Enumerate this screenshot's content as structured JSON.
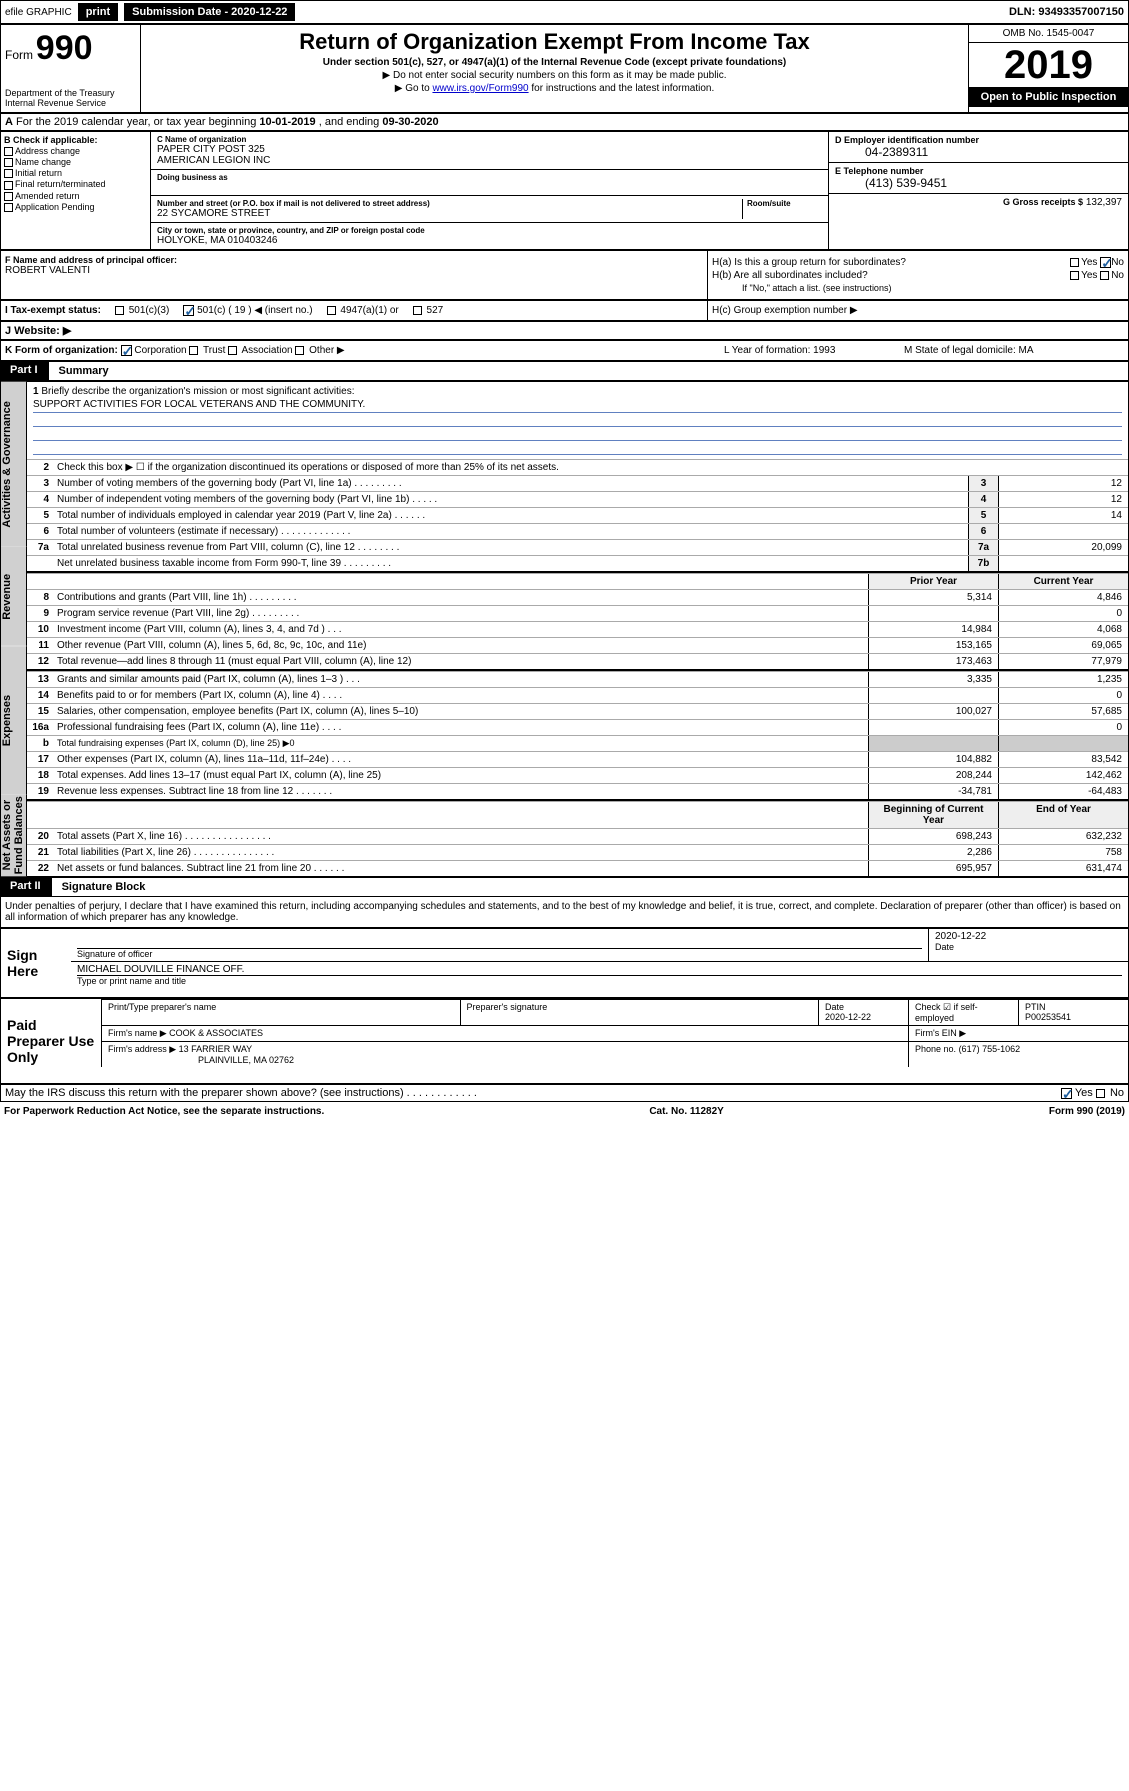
{
  "top_bar": {
    "efile": "efile GRAPHIC",
    "print": "print",
    "submission_label": "Submission Date - 2020-12-22",
    "dln": "DLN: 93493357007150"
  },
  "header": {
    "form_prefix": "Form",
    "form_number": "990",
    "dept": "Department of the Treasury\nInternal Revenue Service",
    "title": "Return of Organization Exempt From Income Tax",
    "subtitle": "Under section 501(c), 527, or 4947(a)(1) of the Internal Revenue Code (except private foundations)",
    "note1": "▶ Do not enter social security numbers on this form as it may be made public.",
    "note2_pre": "▶ Go to ",
    "note2_link": "www.irs.gov/Form990",
    "note2_post": " for instructions and the latest information.",
    "omb": "OMB No. 1545-0047",
    "year": "2019",
    "open_public": "Open to Public Inspection"
  },
  "section_a": {
    "prefix": "A",
    "text": "For the 2019 calendar year, or tax year beginning ",
    "begin": "10-01-2019",
    "mid": " , and ending ",
    "end": "09-30-2020"
  },
  "col_b": {
    "label": "B Check if applicable:",
    "items": [
      "Address change",
      "Name change",
      "Initial return",
      "Final return/terminated",
      "Amended return",
      "Application Pending"
    ]
  },
  "col_c": {
    "name_label": "C Name of organization",
    "name1": "PAPER CITY POST 325",
    "name2": "AMERICAN LEGION INC",
    "dba_label": "Doing business as",
    "addr_label": "Number and street (or P.O. box if mail is not delivered to street address)",
    "room_label": "Room/suite",
    "addr": "22 SYCAMORE STREET",
    "city_label": "City or town, state or province, country, and ZIP or foreign postal code",
    "city": "HOLYOKE, MA  010403246"
  },
  "col_d": {
    "label": "D Employer identification number",
    "value": "04-2389311"
  },
  "col_e": {
    "label": "E Telephone number",
    "value": "(413) 539-9451"
  },
  "col_g": {
    "label": "G Gross receipts $",
    "value": "132,397"
  },
  "col_f": {
    "label": "F  Name and address of principal officer:",
    "name": "ROBERT VALENTI"
  },
  "col_h": {
    "ha": "H(a)  Is this a group return for subordinates?",
    "hb": "H(b)  Are all subordinates included?",
    "hb_note": "If \"No,\" attach a list. (see instructions)",
    "hc": "H(c)  Group exemption number ▶"
  },
  "row_i": {
    "label": "I   Tax-exempt status:",
    "o1": "501(c)(3)",
    "o2": "501(c) ( 19 ) ◀ (insert no.)",
    "o3": "4947(a)(1) or",
    "o4": "527"
  },
  "row_j": {
    "label": "J   Website: ▶"
  },
  "row_k": {
    "label": "K Form of organization:",
    "opts": [
      "Corporation",
      "Trust",
      "Association",
      "Other ▶"
    ],
    "l": "L Year of formation: 1993",
    "m": "M State of legal domicile: MA"
  },
  "part1": {
    "num": "Part I",
    "title": "Summary"
  },
  "mission": {
    "num": "1",
    "label": "Briefly describe the organization's mission or most significant activities:",
    "text": "SUPPORT ACTIVITIES FOR LOCAL VETERANS AND THE COMMUNITY."
  },
  "governance": {
    "tab": "Activities & Governance",
    "line2": "Check this box ▶ ☐  if the organization discontinued its operations or disposed of more than 25% of its net assets.",
    "rows": [
      {
        "n": "3",
        "t": "Number of voting members of the governing body (Part VI, line 1a)  .  .  .  .  .  .  .  .  .",
        "b": "3",
        "v": "12"
      },
      {
        "n": "4",
        "t": "Number of independent voting members of the governing body (Part VI, line 1b)  .  .  .  .  .",
        "b": "4",
        "v": "12"
      },
      {
        "n": "5",
        "t": "Total number of individuals employed in calendar year 2019 (Part V, line 2a)  .  .  .  .  .  .",
        "b": "5",
        "v": "14"
      },
      {
        "n": "6",
        "t": "Total number of volunteers (estimate if necessary)  .  .  .  .  .  .  .  .  .  .  .  .  .",
        "b": "6",
        "v": ""
      },
      {
        "n": "7a",
        "t": "Total unrelated business revenue from Part VIII, column (C), line 12  .  .  .  .  .  .  .  .",
        "b": "7a",
        "v": "20,099"
      },
      {
        "n": "",
        "t": "Net unrelated business taxable income from Form 990-T, line 39  .  .  .  .  .  .  .  .  .",
        "b": "7b",
        "v": ""
      }
    ]
  },
  "revenue": {
    "tab": "Revenue",
    "hdr_prior": "Prior Year",
    "hdr_current": "Current Year",
    "rows": [
      {
        "n": "8",
        "t": "Contributions and grants (Part VIII, line 1h)  .  .  .  .  .  .  .  .  .",
        "p": "5,314",
        "c": "4,846"
      },
      {
        "n": "9",
        "t": "Program service revenue (Part VIII, line 2g)  .  .  .  .  .  .  .  .  .",
        "p": "",
        "c": "0"
      },
      {
        "n": "10",
        "t": "Investment income (Part VIII, column (A), lines 3, 4, and 7d )  .  .  .",
        "p": "14,984",
        "c": "4,068"
      },
      {
        "n": "11",
        "t": "Other revenue (Part VIII, column (A), lines 5, 6d, 8c, 9c, 10c, and 11e)",
        "p": "153,165",
        "c": "69,065"
      },
      {
        "n": "12",
        "t": "Total revenue—add lines 8 through 11 (must equal Part VIII, column (A), line 12)",
        "p": "173,463",
        "c": "77,979"
      }
    ]
  },
  "expenses": {
    "tab": "Expenses",
    "rows": [
      {
        "n": "13",
        "t": "Grants and similar amounts paid (Part IX, column (A), lines 1–3 )  .  .  .",
        "p": "3,335",
        "c": "1,235"
      },
      {
        "n": "14",
        "t": "Benefits paid to or for members (Part IX, column (A), line 4)  .  .  .  .",
        "p": "",
        "c": "0"
      },
      {
        "n": "15",
        "t": "Salaries, other compensation, employee benefits (Part IX, column (A), lines 5–10)",
        "p": "100,027",
        "c": "57,685"
      },
      {
        "n": "16a",
        "t": "Professional fundraising fees (Part IX, column (A), line 11e)  .  .  .  .",
        "p": "",
        "c": "0"
      },
      {
        "n": "b",
        "t": "Total fundraising expenses (Part IX, column (D), line 25) ▶0",
        "p": "",
        "c": "",
        "noval": true
      },
      {
        "n": "17",
        "t": "Other expenses (Part IX, column (A), lines 11a–11d, 11f–24e)  .  .  .  .",
        "p": "104,882",
        "c": "83,542"
      },
      {
        "n": "18",
        "t": "Total expenses. Add lines 13–17 (must equal Part IX, column (A), line 25)",
        "p": "208,244",
        "c": "142,462"
      },
      {
        "n": "19",
        "t": "Revenue less expenses. Subtract line 18 from line 12  .  .  .  .  .  .  .",
        "p": "-34,781",
        "c": "-64,483"
      }
    ]
  },
  "net_assets": {
    "tab": "Net Assets or Fund Balances",
    "hdr_begin": "Beginning of Current Year",
    "hdr_end": "End of Year",
    "rows": [
      {
        "n": "20",
        "t": "Total assets (Part X, line 16)  .  .  .  .  .  .  .  .  .  .  .  .  .  .  .  .",
        "p": "698,243",
        "c": "632,232"
      },
      {
        "n": "21",
        "t": "Total liabilities (Part X, line 26)  .  .  .  .  .  .  .  .  .  .  .  .  .  .  .",
        "p": "2,286",
        "c": "758"
      },
      {
        "n": "22",
        "t": "Net assets or fund balances. Subtract line 21 from line 20  .  .  .  .  .  .",
        "p": "695,957",
        "c": "631,474"
      }
    ]
  },
  "part2": {
    "num": "Part II",
    "title": "Signature Block"
  },
  "perjury": "Under penalties of perjury, I declare that I have examined this return, including accompanying schedules and statements, and to the best of my knowledge and belief, it is true, correct, and complete. Declaration of preparer (other than officer) is based on all information of which preparer has any knowledge.",
  "sign_here": {
    "label": "Sign Here",
    "sig_of_officer": "Signature of officer",
    "date": "2020-12-22",
    "date_label": "Date",
    "name_title": "MICHAEL DOUVILLE  FINANCE OFF.",
    "name_label": "Type or print name and title"
  },
  "paid_prep": {
    "label": "Paid Preparer Use Only",
    "cols": [
      "Print/Type preparer's name",
      "Preparer's signature",
      "Date",
      "",
      "PTIN"
    ],
    "date": "2020-12-22",
    "check_label": "Check ☑ if self-employed",
    "ptin": "P00253541",
    "firm_name_label": "Firm's name      ▶",
    "firm_name": "COOK & ASSOCIATES",
    "firm_ein_label": "Firm's EIN ▶",
    "firm_addr_label": "Firm's address ▶",
    "firm_addr1": "13 FARRIER WAY",
    "firm_addr2": "PLAINVILLE, MA  02762",
    "phone_label": "Phone no.",
    "phone": "(617) 755-1062"
  },
  "discuss": {
    "text": "May the IRS discuss this return with the preparer shown above? (see instructions)  .  .  .  .  .  .  .  .  .  .  .  .",
    "yes": "Yes",
    "no": "No"
  },
  "footer": {
    "left": "For Paperwork Reduction Act Notice, see the separate instructions.",
    "mid": "Cat. No. 11282Y",
    "right": "Form 990 (2019)"
  }
}
